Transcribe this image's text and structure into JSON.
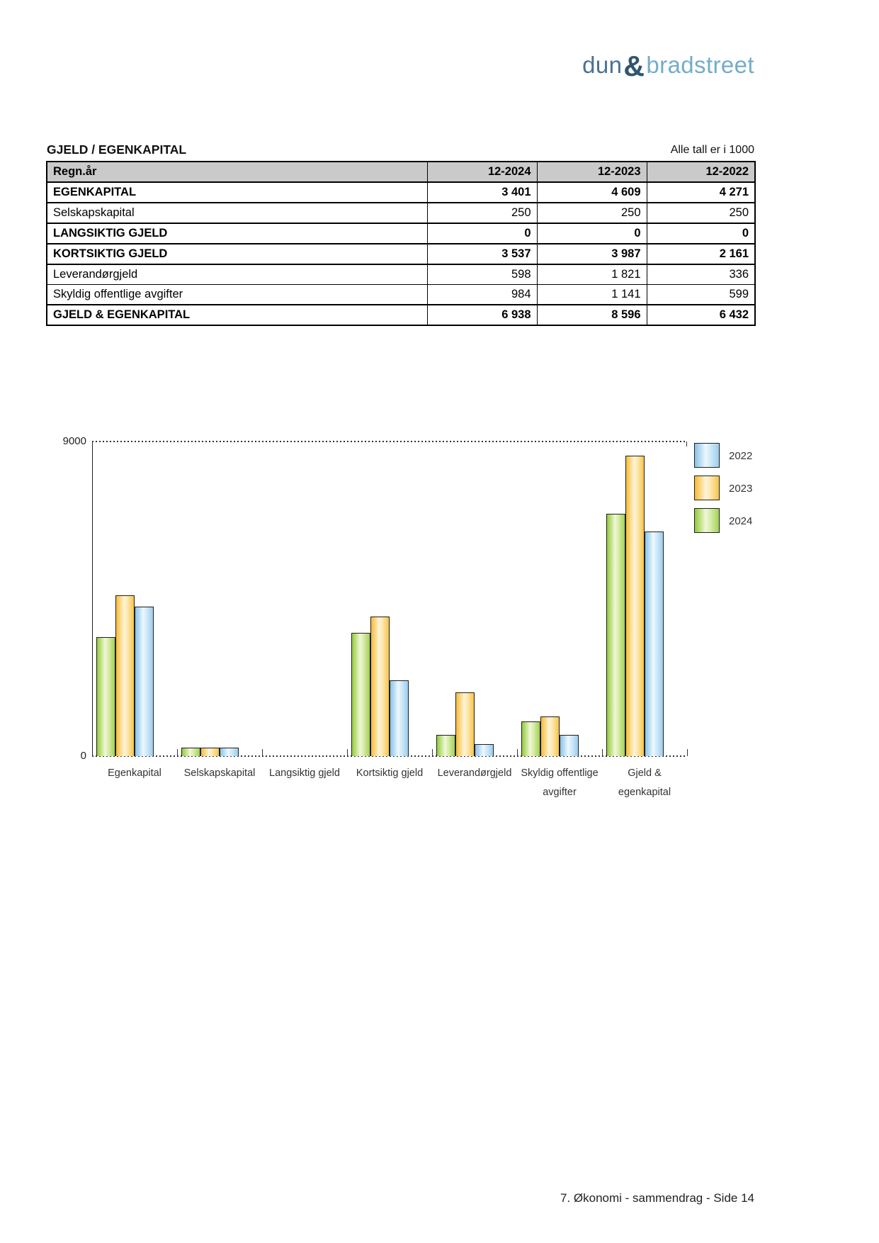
{
  "logo": {
    "dun": "dun",
    "amp": "&",
    "bradstreet": "bradstreet"
  },
  "header": {
    "title": "GJELD / EGENKAPITAL",
    "note": "Alle tall er i 1000"
  },
  "table": {
    "header": [
      "Regn.år",
      "12-2024",
      "12-2023",
      "12-2022"
    ],
    "rows": [
      {
        "label": "EGENKAPITAL",
        "bold": true,
        "values": [
          "3 401",
          "4 609",
          "4 271"
        ]
      },
      {
        "label": "Selskapskapital",
        "bold": false,
        "values": [
          "250",
          "250",
          "250"
        ]
      },
      {
        "label": "LANGSIKTIG GJELD",
        "bold": true,
        "values": [
          "0",
          "0",
          "0"
        ]
      },
      {
        "label": "KORTSIKTIG GJELD",
        "bold": true,
        "values": [
          "3 537",
          "3 987",
          "2 161"
        ]
      },
      {
        "label": "Leverandørgjeld",
        "bold": false,
        "values": [
          "598",
          "1 821",
          "336"
        ]
      },
      {
        "label": "Skyldig offentlige avgifter",
        "bold": false,
        "values": [
          "984",
          "1 141",
          "599"
        ]
      },
      {
        "label": "GJELD & EGENKAPITAL",
        "bold": true,
        "values": [
          "6 938",
          "8 596",
          "6 432"
        ]
      }
    ]
  },
  "chart_data": {
    "type": "bar",
    "categories": [
      "Egenkapital",
      "Selskapskapital",
      "Langsiktig gjeld",
      "Kortsiktig gjeld",
      "Leverandørgjeld",
      "Skyldig offentlige avgifter",
      "Gjeld & egenkapital"
    ],
    "category_display": [
      "Egenkapital",
      "Selskapskapital",
      "Langsiktig gjeld",
      "Kortsiktig gjeld",
      "Leverandørgjeld",
      "Skyldig offentlige\navgifter",
      "Gjeld &\negenkapital"
    ],
    "series": [
      {
        "name": "2024",
        "color": "#8cc63f",
        "values": [
          3401,
          250,
          0,
          3537,
          598,
          984,
          6938
        ]
      },
      {
        "name": "2023",
        "color": "#f9c349",
        "values": [
          4609,
          250,
          0,
          3987,
          1821,
          1141,
          8596
        ]
      },
      {
        "name": "2022",
        "color": "#92c9ed",
        "values": [
          4271,
          250,
          0,
          2161,
          336,
          599,
          6432
        ]
      }
    ],
    "legend": {
      "position": "top-right",
      "order": [
        "2022",
        "2023",
        "2024"
      ]
    },
    "ylim": [
      0,
      9000
    ],
    "ytick_labels": [
      "0",
      "9000"
    ],
    "grid": "dotted line at ymax and dotted baseline with category ticks"
  },
  "footer": {
    "text": "7. Økonomi - sammendrag - Side 14"
  }
}
